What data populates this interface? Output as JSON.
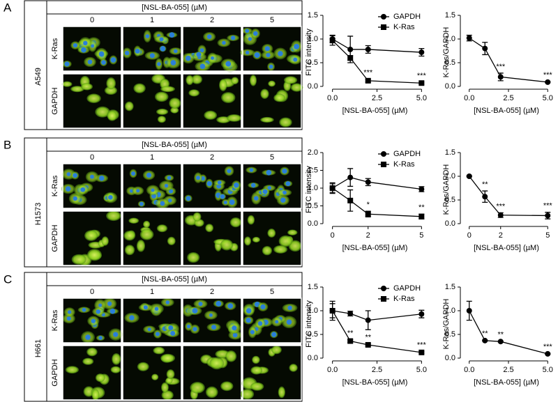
{
  "panels": [
    {
      "label": "A",
      "cell_line": "A549",
      "header": "[NSL-BA-055] (µM)",
      "concentrations": [
        "0",
        "1",
        "2",
        "5"
      ],
      "rows": [
        "K-Ras",
        "GAPDH"
      ]
    },
    {
      "label": "B",
      "cell_line": "H1573",
      "header": "[NSL-BA-055] (µM)",
      "concentrations": [
        "0",
        "1",
        "2",
        "5"
      ],
      "rows": [
        "K-Ras",
        "GAPDH"
      ]
    },
    {
      "label": "C",
      "cell_line": "H661",
      "header": "[NSL-BA-055] (µM)",
      "concentrations": [
        "0",
        "1",
        "2",
        "5"
      ],
      "rows": [
        "K-Ras",
        "GAPDH"
      ]
    }
  ],
  "chart_data": [
    {
      "type": "line",
      "y_label": "FITC intensity",
      "x_label": "[NSL-BA-055] (µM)",
      "x": [
        0,
        1,
        2,
        5
      ],
      "xlim": [
        -0.3,
        5.3
      ],
      "xticks": [
        {
          "value": 0,
          "label": "0.0"
        },
        {
          "value": 2.5,
          "label": "2.5"
        },
        {
          "value": 5,
          "label": "5.0"
        }
      ],
      "ylim": [
        0,
        1.5
      ],
      "yticks": [
        {
          "value": 0,
          "label": "0.0"
        },
        {
          "value": 0.5,
          "label": "0.5"
        },
        {
          "value": 1,
          "label": "1.0"
        },
        {
          "value": 1.5,
          "label": "1.5"
        }
      ],
      "series": [
        {
          "name": "GAPDH",
          "color": "#000000",
          "marker": "circle",
          "values": [
            1.0,
            0.78,
            0.78,
            0.72
          ],
          "errors": [
            0.08,
            0.28,
            0.08,
            0.08
          ]
        },
        {
          "name": "K-Ras",
          "color": "#000000",
          "marker": "square",
          "values": [
            0.97,
            0.6,
            0.12,
            0.07
          ],
          "errors": [
            0.1,
            0.05,
            0.03,
            0.02
          ]
        }
      ],
      "annotations": [
        {
          "x": 2,
          "text": "***"
        },
        {
          "x": 5,
          "text": "***"
        }
      ]
    },
    {
      "type": "line",
      "y_label": "K-Ras/GAPDH",
      "x_label": "[NSL-BA-055] (µM)",
      "x": [
        0,
        1,
        2,
        5
      ],
      "xlim": [
        -0.3,
        5.3
      ],
      "xticks": [
        {
          "value": 0,
          "label": "0.0"
        },
        {
          "value": 2.5,
          "label": "2.5"
        },
        {
          "value": 5,
          "label": "5.0"
        }
      ],
      "ylim": [
        0,
        1.5
      ],
      "yticks": [
        {
          "value": 0,
          "label": "0.0"
        },
        {
          "value": 0.5,
          "label": "0.5"
        },
        {
          "value": 1,
          "label": "1.0"
        },
        {
          "value": 1.5,
          "label": "1.5"
        }
      ],
      "series": [
        {
          "color": "#000000",
          "marker": "circle",
          "values": [
            1.02,
            0.8,
            0.2,
            0.09
          ],
          "errors": [
            0.06,
            0.13,
            0.08,
            0.01
          ]
        }
      ],
      "annotations": [
        {
          "x": 2,
          "text": "***"
        },
        {
          "x": 5,
          "text": "***"
        }
      ]
    },
    {
      "type": "line",
      "y_label": "FITC intensity",
      "x_label": "[NSL-BA-055] (µM)",
      "x": [
        0,
        1,
        2,
        5
      ],
      "xlim": [
        -0.3,
        5.3
      ],
      "xticks": [
        0,
        2,
        5
      ],
      "ylim": [
        0,
        2
      ],
      "yticks": [
        {
          "value": 0,
          "label": "0.0"
        },
        {
          "value": 0.5,
          "label": "0.5"
        },
        {
          "value": 1,
          "label": "1.0"
        },
        {
          "value": 1.5,
          "label": "1.5"
        },
        {
          "value": 2,
          "label": "2.0"
        }
      ],
      "series": [
        {
          "name": "GAPDH",
          "color": "#000000",
          "marker": "circle",
          "values": [
            1.0,
            1.3,
            1.17,
            0.97
          ],
          "errors": [
            0.12,
            0.25,
            0.1,
            0.07
          ]
        },
        {
          "name": "K-Ras",
          "color": "#000000",
          "marker": "square",
          "values": [
            1.0,
            0.65,
            0.27,
            0.2
          ],
          "errors": [
            0.15,
            0.3,
            0.08,
            0.07
          ]
        }
      ],
      "annotations": [
        {
          "x": 2,
          "text": "*"
        },
        {
          "x": 5,
          "text": "**"
        }
      ]
    },
    {
      "type": "line",
      "y_label": "K-Ras/GAPDH",
      "x_label": "[NSL-BA-055] (µM)",
      "x": [
        0,
        1,
        2,
        5
      ],
      "xlim": [
        -0.3,
        5.3
      ],
      "xticks": [
        0,
        2,
        5
      ],
      "ylim": [
        0,
        1.5
      ],
      "yticks": [
        {
          "value": 0,
          "label": "0.0"
        },
        {
          "value": 0.5,
          "label": "0.5"
        },
        {
          "value": 1,
          "label": "1.0"
        },
        {
          "value": 1.5,
          "label": "1.5"
        }
      ],
      "series": [
        {
          "color": "#000000",
          "marker": "circle",
          "values": [
            1.0,
            0.57,
            0.18,
            0.17
          ],
          "errors": [
            0.01,
            0.12,
            0.05,
            0.07
          ]
        }
      ],
      "annotations": [
        {
          "x": 1,
          "text": "**"
        },
        {
          "x": 2,
          "text": "***"
        },
        {
          "x": 5,
          "text": "***"
        }
      ]
    },
    {
      "type": "line",
      "y_label": "FITC intensity",
      "x_label": "[NSL-BA-055] (µM)",
      "x": [
        0,
        1,
        2,
        5
      ],
      "xlim": [
        -0.3,
        5.3
      ],
      "xticks": [
        {
          "value": 0,
          "label": "0.0"
        },
        {
          "value": 2.5,
          "label": "2.5"
        },
        {
          "value": 5,
          "label": "5.0"
        }
      ],
      "ylim": [
        0,
        1.5
      ],
      "yticks": [
        {
          "value": 0,
          "label": "0.0"
        },
        {
          "value": 0.5,
          "label": "0.5"
        },
        {
          "value": 1,
          "label": "1.0"
        },
        {
          "value": 1.5,
          "label": "1.5"
        }
      ],
      "series": [
        {
          "name": "GAPDH",
          "color": "#000000",
          "marker": "circle",
          "values": [
            1.0,
            0.94,
            0.8,
            0.93
          ],
          "errors": [
            0.2,
            0.05,
            0.2,
            0.08
          ]
        },
        {
          "name": "K-Ras",
          "color": "#000000",
          "marker": "square",
          "values": [
            1.0,
            0.36,
            0.28,
            0.12
          ],
          "errors": [
            0.15,
            0.03,
            0.02,
            0.02
          ]
        }
      ],
      "annotations": [
        {
          "x": 1,
          "text": "**"
        },
        {
          "x": 2,
          "text": "**"
        },
        {
          "x": 5,
          "text": "***"
        }
      ]
    },
    {
      "type": "line",
      "y_label": "K-Ras/GAPDH",
      "x_label": "[NSL-BA-055] (µM)",
      "x": [
        0,
        1,
        2,
        5
      ],
      "xlim": [
        -0.3,
        5.3
      ],
      "xticks": [
        {
          "value": 0,
          "label": "0.0"
        },
        {
          "value": 2.5,
          "label": "2.5"
        },
        {
          "value": 5,
          "label": "5.0"
        }
      ],
      "ylim": [
        0,
        1.5
      ],
      "yticks": [
        {
          "value": 0,
          "label": "0.0"
        },
        {
          "value": 0.5,
          "label": "0.5"
        },
        {
          "value": 1,
          "label": "1.0"
        },
        {
          "value": 1.5,
          "label": "1.5"
        }
      ],
      "series": [
        {
          "color": "#000000",
          "marker": "circle",
          "values": [
            1.0,
            0.37,
            0.35,
            0.09
          ],
          "errors": [
            0.2,
            0.01,
            0.01,
            0.01
          ]
        }
      ],
      "annotations": [
        {
          "x": 1,
          "text": "**"
        },
        {
          "x": 2,
          "text": "**"
        },
        {
          "x": 5,
          "text": "***"
        }
      ]
    }
  ]
}
